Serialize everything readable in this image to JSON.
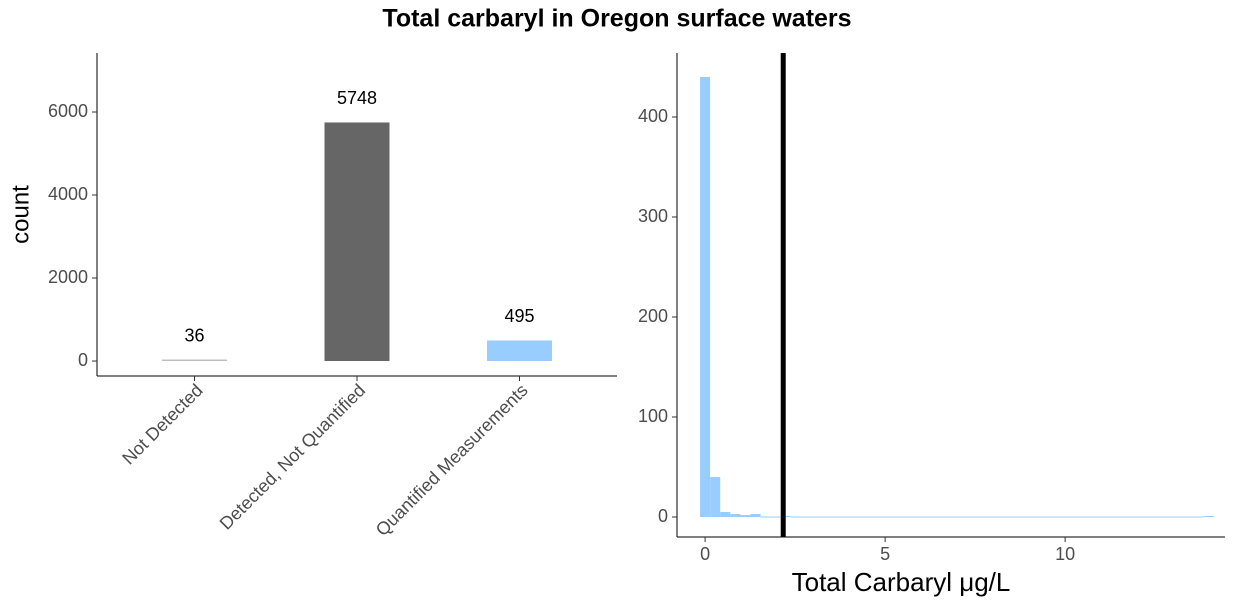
{
  "title": "Total carbaryl in Oregon surface waters",
  "chart_data": [
    {
      "type": "bar",
      "ylabel": "count",
      "categories": [
        "Not Detected",
        "Detected, Not Quantified",
        "Quantified Measurements"
      ],
      "values": [
        36,
        5748,
        495
      ],
      "colors": [
        "#bebebe",
        "#666666",
        "#99ccff"
      ],
      "ylim": [
        -361,
        7422
      ],
      "yticks": [
        0,
        2000,
        4000,
        6000
      ]
    },
    {
      "type": "histogram",
      "xlabel": "Total Carbaryl μg/L",
      "color": "#99ccff",
      "bins": [
        -0.14,
        0.14,
        0.42,
        0.7,
        0.98,
        1.26,
        1.54,
        1.82,
        2.1,
        2.38,
        2.66,
        2.94,
        3.22,
        3.5,
        3.78,
        4.06,
        4.34,
        4.62,
        4.9,
        5.18,
        5.46,
        5.74,
        6.02,
        6.3,
        6.58,
        6.86,
        7.14,
        7.42,
        7.7,
        7.98,
        8.26,
        8.54,
        8.82,
        9.1,
        9.38,
        9.66,
        9.94,
        10.22,
        10.5,
        10.78,
        11.06,
        11.34,
        11.62,
        11.9,
        12.18,
        12.46,
        12.74,
        13.02,
        13.3,
        13.58,
        13.86,
        14.14
      ],
      "counts": [
        440,
        40,
        5,
        3,
        2,
        3,
        0,
        0,
        1,
        0,
        0,
        0,
        0,
        0,
        0,
        0,
        0,
        0,
        0,
        0,
        0,
        0,
        0,
        0,
        0,
        0,
        0,
        0,
        0,
        0,
        0,
        0,
        0,
        0,
        0,
        0,
        0,
        0,
        0,
        0,
        0,
        0,
        0,
        0,
        0,
        0,
        0,
        0,
        0,
        0,
        1
      ],
      "vline": 2.17,
      "xlim": [
        -0.78,
        14.44
      ],
      "xticks": [
        0,
        5,
        10
      ],
      "ylim": [
        -20,
        464
      ],
      "yticks": [
        0,
        100,
        200,
        300,
        400
      ]
    }
  ]
}
